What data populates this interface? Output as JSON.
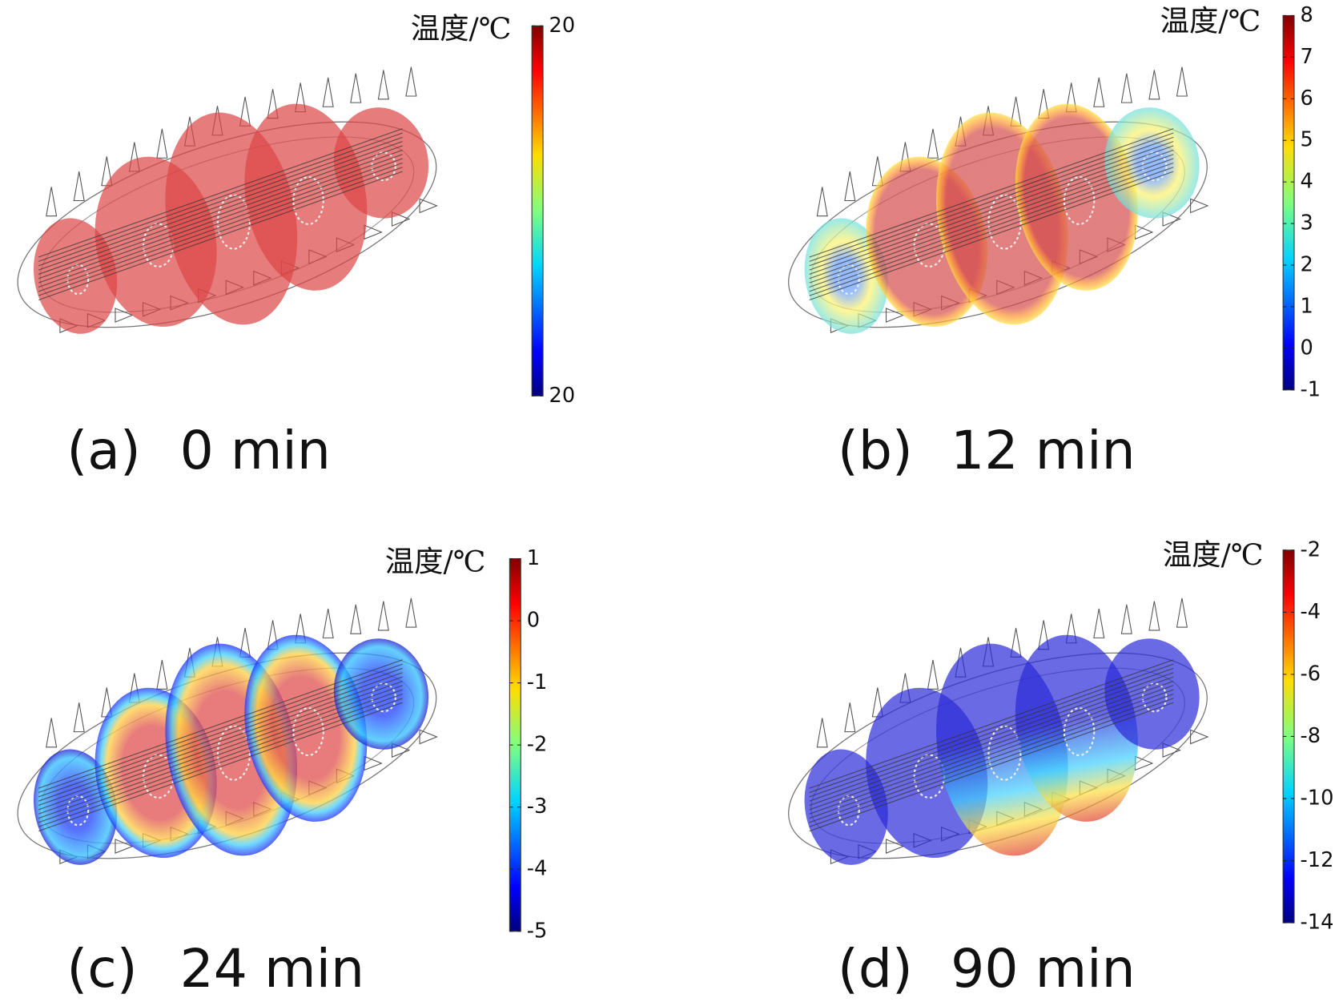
{
  "panels": [
    {
      "label": "(a)",
      "time": "0 min",
      "colorbar_title": "温度/℃",
      "ticks": [
        20,
        20
      ]
    },
    {
      "label": "(b)",
      "time": "12 min",
      "colorbar_title": "温度/℃",
      "ticks": [
        8,
        7,
        6,
        5,
        4,
        3,
        2,
        1,
        0,
        -1
      ]
    },
    {
      "label": "(c)",
      "time": "24 min",
      "colorbar_title": "温度/℃",
      "ticks": [
        1,
        0,
        -1,
        -2,
        -3,
        -4,
        -5
      ]
    },
    {
      "label": "(d)",
      "time": "90 min",
      "colorbar_title": "温度/℃",
      "ticks": [
        -2,
        -4,
        -6,
        -8,
        -10,
        -12,
        -14
      ]
    }
  ]
}
